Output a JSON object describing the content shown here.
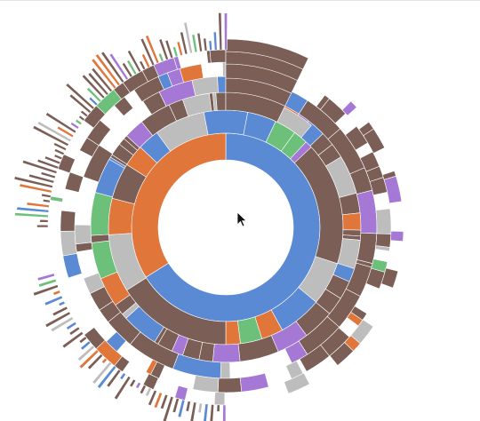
{
  "colors": {
    "blue": "#5b8ad4",
    "orange": "#e0763a",
    "gray": "#bdbdbd",
    "brown": "#7b5e55",
    "green": "#6cc07a",
    "purple": "#a478d4",
    "separator": "#ffffff",
    "background": "#ffffff"
  },
  "chart_data": {
    "type": "sunburst",
    "title": "",
    "rings": [
      {
        "level": 1,
        "segments": [
          {
            "color": "blue",
            "share": 0.69
          },
          {
            "color": "orange",
            "share": 0.31
          }
        ]
      },
      {
        "level": 2,
        "segments": [
          {
            "color": "brown",
            "share": 0.3
          },
          {
            "color": "gray",
            "share": 0.06
          },
          {
            "color": "blue",
            "share": 0.06
          },
          {
            "color": "orange",
            "share": 0.03
          },
          {
            "color": "green",
            "share": 0.03
          },
          {
            "color": "orange",
            "share": 0.02
          },
          {
            "color": "brown",
            "share": 0.16
          },
          {
            "color": "gray",
            "share": 0.08
          },
          {
            "color": "orange",
            "share": 0.05
          },
          {
            "color": "brown",
            "share": 0.05
          },
          {
            "color": "orange",
            "share": 0.03
          },
          {
            "color": "blue",
            "share": 0.03
          },
          {
            "color": "gray",
            "share": 0.07
          },
          {
            "color": "blue",
            "share": 0.06
          },
          {
            "color": "blue",
            "share": 0.04
          },
          {
            "color": "green",
            "share": 0.03
          },
          {
            "color": "green",
            "share": 0.02
          },
          {
            "color": "purple",
            "share": 0.01
          }
        ]
      }
    ]
  },
  "cursor": {
    "icon": "mouse-pointer-icon"
  }
}
